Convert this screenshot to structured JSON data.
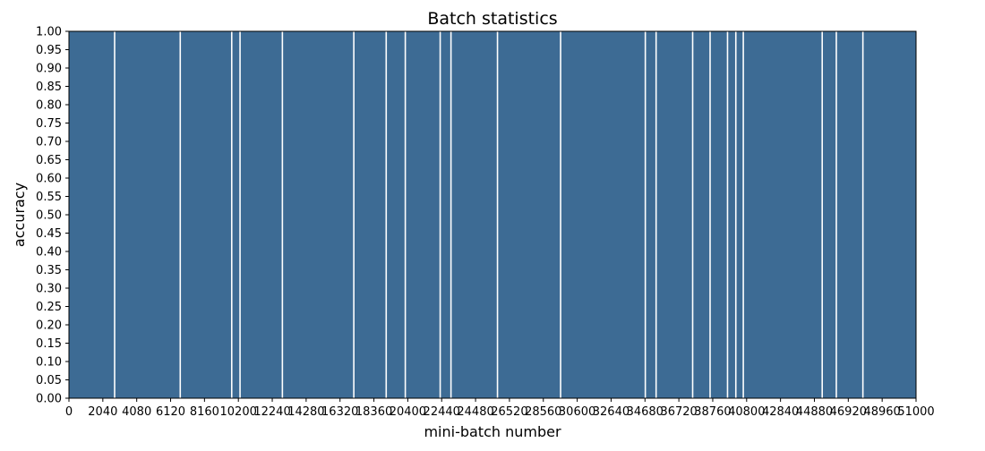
{
  "chart_data": {
    "type": "bar",
    "title": "Batch statistics",
    "xlabel": "mini-batch number",
    "ylabel": "accuracy",
    "xlim": [
      0,
      51000
    ],
    "ylim": [
      0,
      1
    ],
    "x_ticks": [
      0,
      2040,
      4080,
      6120,
      8160,
      10200,
      12240,
      14280,
      16320,
      18360,
      20400,
      22440,
      24480,
      26520,
      28560,
      30600,
      32640,
      34680,
      36720,
      38760,
      40800,
      42840,
      44880,
      46920,
      48960,
      51000
    ],
    "x_tick_labels": [
      "0",
      "2040",
      "4080",
      "6120",
      "8160",
      "10200",
      "12240",
      "14280",
      "16320",
      "18360",
      "20400",
      "22440",
      "24480",
      "26520",
      "28560",
      "30600",
      "32640",
      "34680",
      "36720",
      "38760",
      "40800",
      "42840",
      "44880",
      "46920",
      "48960",
      "51000"
    ],
    "y_ticks": [
      0.0,
      0.05,
      0.1,
      0.15,
      0.2,
      0.25,
      0.3,
      0.35,
      0.4,
      0.45,
      0.5,
      0.55,
      0.6,
      0.65,
      0.7,
      0.75,
      0.8,
      0.85,
      0.9,
      0.95,
      1.0
    ],
    "y_tick_labels": [
      "0.00",
      "0.05",
      "0.10",
      "0.15",
      "0.20",
      "0.25",
      "0.30",
      "0.35",
      "0.40",
      "0.45",
      "0.50",
      "0.55",
      "0.60",
      "0.65",
      "0.70",
      "0.75",
      "0.80",
      "0.85",
      "0.90",
      "0.95",
      "1.00"
    ],
    "grid": false,
    "bar_color": "#3d6b94",
    "bar_value": 1.0,
    "gaps_in_bars_at_x": [
      2750,
      6700,
      9800,
      10300,
      12850,
      17150,
      19100,
      20250,
      22350,
      23000,
      25800,
      29600,
      34700,
      35350,
      37550,
      38600,
      39650,
      40150,
      40600,
      45350,
      46200,
      47800
    ]
  }
}
